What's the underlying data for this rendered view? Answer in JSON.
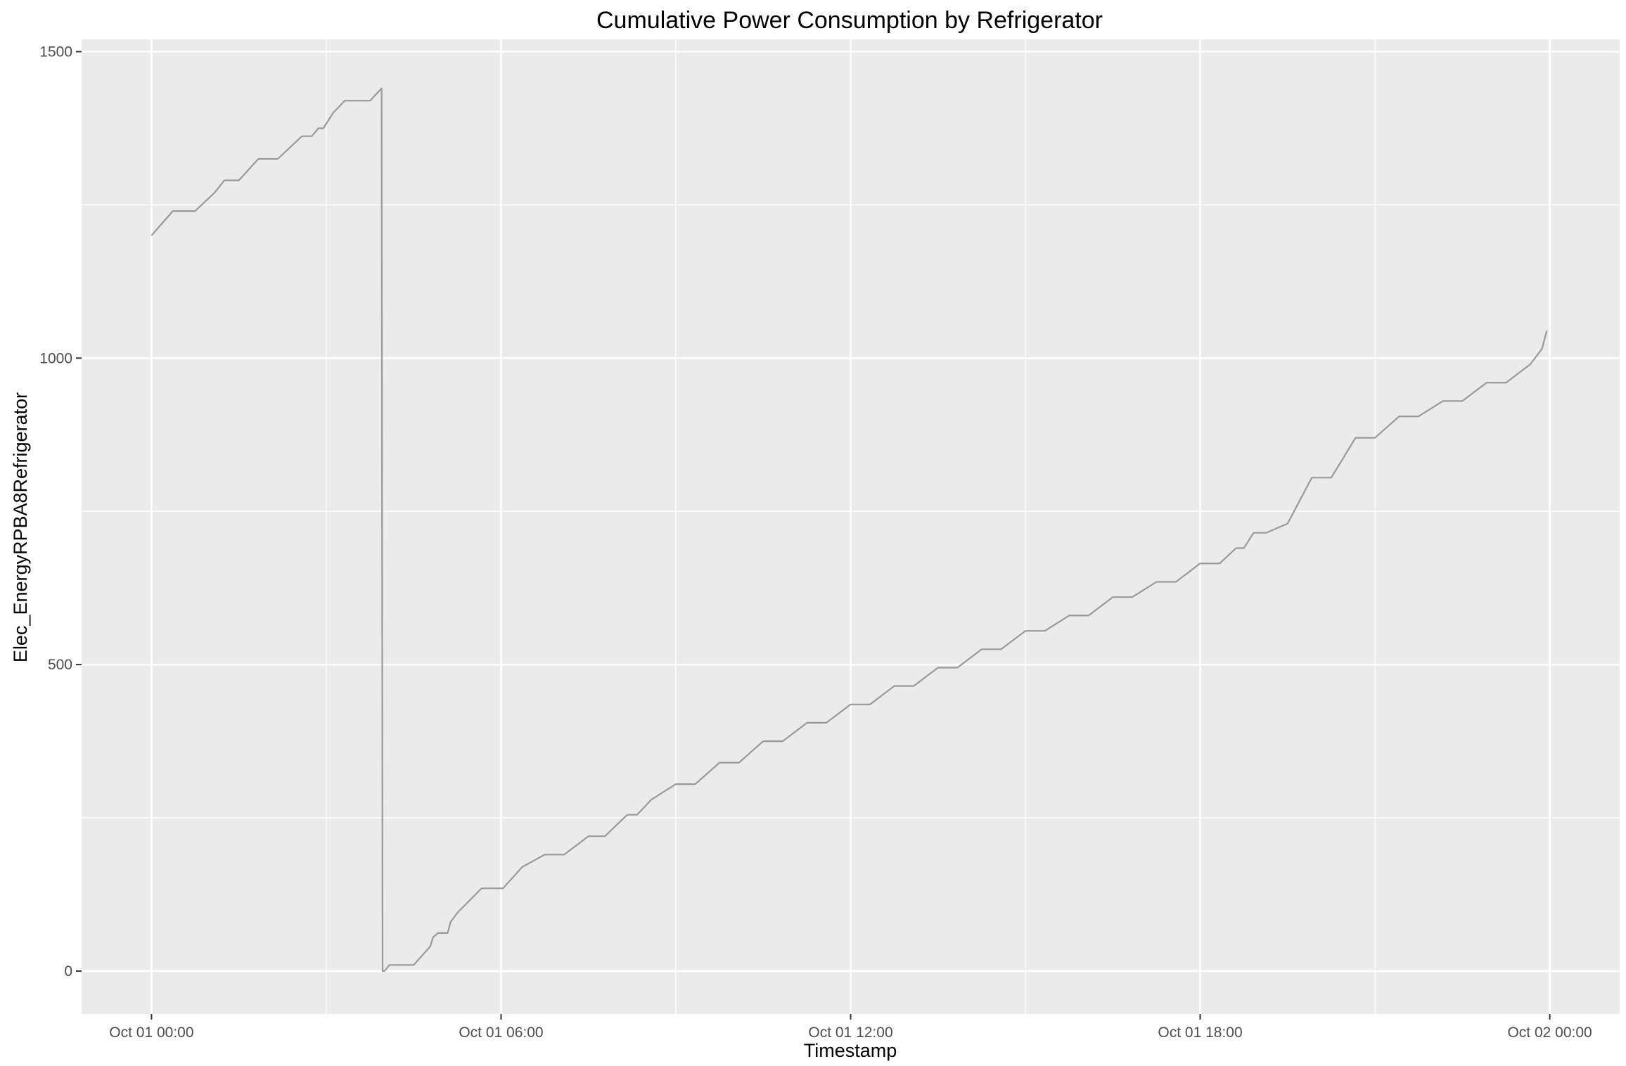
{
  "chart_data": {
    "type": "line",
    "title": "Cumulative Power Consumption by Refrigerator",
    "xlabel": "Timestamp",
    "ylabel": "Elec_EnergyRPBA8Refrigerator",
    "x_axis": {
      "type": "datetime",
      "min": "Oct 01 -01:12",
      "max": "Oct 02 01:12",
      "ticks": [
        "Oct 01 00:00",
        "Oct 01 06:00",
        "Oct 01 12:00",
        "Oct 01 18:00",
        "Oct 02 00:00"
      ]
    },
    "y_axis": {
      "min": -70,
      "max": 1520,
      "ticks": [
        0,
        500,
        1000,
        1500
      ]
    },
    "grid": true,
    "panel_background": "#EBEBEB",
    "line_color": "#999999",
    "series": [
      {
        "x": [
          "Oct 01 00:00",
          "Oct 01 00:22",
          "Oct 01 00:45",
          "Oct 01 01:05",
          "Oct 01 01:15",
          "Oct 01 01:30",
          "Oct 01 01:50",
          "Oct 01 02:10",
          "Oct 01 02:35",
          "Oct 01 02:45",
          "Oct 01 02:52",
          "Oct 01 02:57",
          "Oct 01 03:07",
          "Oct 01 03:19",
          "Oct 01 03:22",
          "Oct 01 03:45",
          "Oct 01 03:57",
          "Oct 01 03:58",
          "Oct 01 04:00",
          "Oct 01 04:05",
          "Oct 01 04:30",
          "Oct 01 04:47",
          "Oct 01 04:50",
          "Oct 01 04:55",
          "Oct 01 05:05",
          "Oct 01 05:08",
          "Oct 01 05:15",
          "Oct 01 05:40",
          "Oct 01 06:02",
          "Oct 01 06:22",
          "Oct 01 06:45",
          "Oct 01 07:05",
          "Oct 01 07:30",
          "Oct 01 07:47",
          "Oct 01 08:10",
          "Oct 01 08:20",
          "Oct 01 08:35",
          "Oct 01 09:00",
          "Oct 01 09:20",
          "Oct 01 09:45",
          "Oct 01 10:05",
          "Oct 01 10:30",
          "Oct 01 10:50",
          "Oct 01 11:15",
          "Oct 01 11:35",
          "Oct 01 12:00",
          "Oct 01 12:20",
          "Oct 01 12:45",
          "Oct 01 13:05",
          "Oct 01 13:30",
          "Oct 01 13:50",
          "Oct 01 14:15",
          "Oct 01 14:35",
          "Oct 01 15:00",
          "Oct 01 15:20",
          "Oct 01 15:45",
          "Oct 01 16:05",
          "Oct 01 16:30",
          "Oct 01 16:50",
          "Oct 01 17:15",
          "Oct 01 17:35",
          "Oct 01 18:00",
          "Oct 01 18:20",
          "Oct 01 18:37",
          "Oct 01 18:45",
          "Oct 01 18:55",
          "Oct 01 19:08",
          "Oct 01 19:30",
          "Oct 01 19:55",
          "Oct 01 20:15",
          "Oct 01 20:40",
          "Oct 01 21:00",
          "Oct 01 21:25",
          "Oct 01 21:45",
          "Oct 01 22:10",
          "Oct 01 22:30",
          "Oct 01 22:55",
          "Oct 01 23:15",
          "Oct 01 23:40",
          "Oct 01 23:52",
          "Oct 01 23:57"
        ],
        "y": [
          1200,
          1240,
          1240,
          1270,
          1290,
          1290,
          1325,
          1325,
          1362,
          1362,
          1375,
          1375,
          1400,
          1420,
          1420,
          1420,
          1440,
          0,
          0,
          10,
          10,
          40,
          55,
          62,
          62,
          80,
          95,
          135,
          135,
          170,
          190,
          190,
          220,
          220,
          255,
          255,
          280,
          305,
          305,
          340,
          340,
          375,
          375,
          405,
          405,
          435,
          435,
          465,
          465,
          495,
          495,
          525,
          525,
          555,
          555,
          580,
          580,
          610,
          610,
          635,
          635,
          665,
          665,
          690,
          690,
          715,
          715,
          730,
          805,
          805,
          870,
          870,
          905,
          905,
          930,
          930,
          960,
          960,
          990,
          1015,
          1045
        ]
      }
    ]
  }
}
